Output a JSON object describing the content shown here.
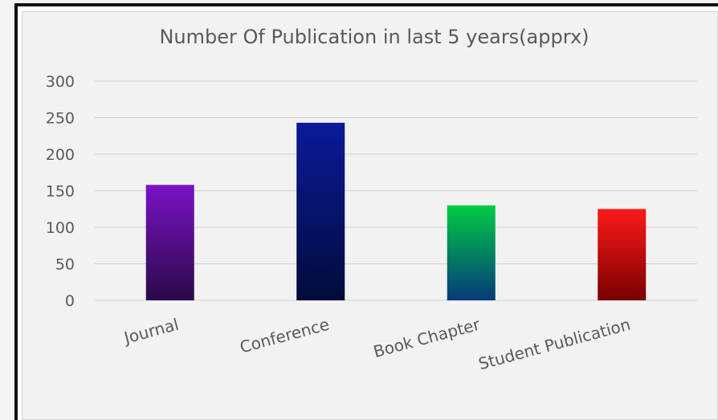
{
  "chart_data": {
    "type": "bar",
    "title": "Number Of Publication in last 5 years(apprx)",
    "xlabel": "",
    "ylabel": "",
    "categories": [
      "Journal",
      "Conference",
      "Book Chapter",
      "Student Publication"
    ],
    "values": [
      158,
      243,
      130,
      125
    ],
    "ylim": [
      0,
      300
    ],
    "yticks": [
      "0",
      "50",
      "100",
      "150",
      "200",
      "250",
      "300"
    ],
    "grid": true,
    "legend": "none",
    "bar_colors": [
      {
        "top": "#7a12c4",
        "bottom": "#2a0a4a"
      },
      {
        "top": "#0b1a9a",
        "bottom": "#020c3a"
      },
      {
        "top": "#00cc44",
        "bottom": "#063a7a"
      },
      {
        "top": "#ff1a1a",
        "bottom": "#7a0000"
      }
    ]
  }
}
